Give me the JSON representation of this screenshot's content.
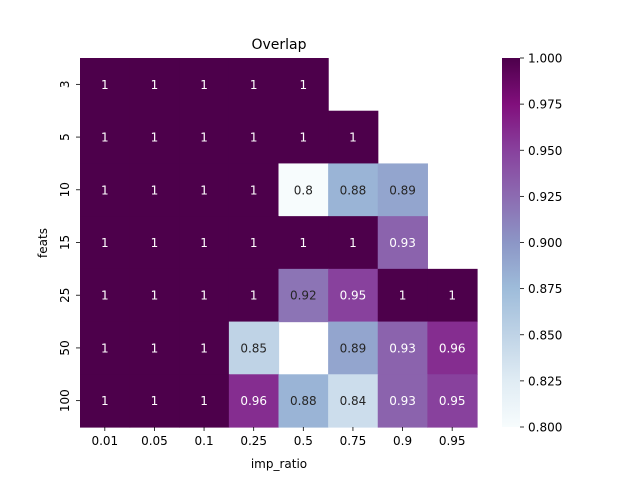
{
  "chart_data": {
    "type": "heatmap",
    "title": "Overlap",
    "xlabel": "imp_ratio",
    "ylabel": "feats",
    "x_categories": [
      "0.01",
      "0.05",
      "0.1",
      "0.25",
      "0.5",
      "0.75",
      "0.9",
      "0.95"
    ],
    "y_categories": [
      "3",
      "5",
      "10",
      "15",
      "25",
      "50",
      "100"
    ],
    "values": [
      [
        1,
        1,
        1,
        1,
        1,
        null,
        null,
        null
      ],
      [
        1,
        1,
        1,
        1,
        1,
        1,
        null,
        null
      ],
      [
        1,
        1,
        1,
        1,
        0.8,
        0.88,
        0.89,
        null
      ],
      [
        1,
        1,
        1,
        1,
        1,
        1,
        0.93,
        null
      ],
      [
        1,
        1,
        1,
        1,
        0.92,
        0.95,
        1,
        1
      ],
      [
        1,
        1,
        1,
        0.85,
        null,
        0.89,
        0.93,
        0.96
      ],
      [
        1,
        1,
        1,
        0.96,
        0.88,
        0.84,
        0.93,
        0.95
      ]
    ],
    "colorbar": {
      "min": 0.8,
      "max": 1.0,
      "ticks": [
        "0.800",
        "0.825",
        "0.850",
        "0.875",
        "0.900",
        "0.925",
        "0.950",
        "0.975",
        "1.000"
      ],
      "colormap": "BuPu"
    }
  }
}
